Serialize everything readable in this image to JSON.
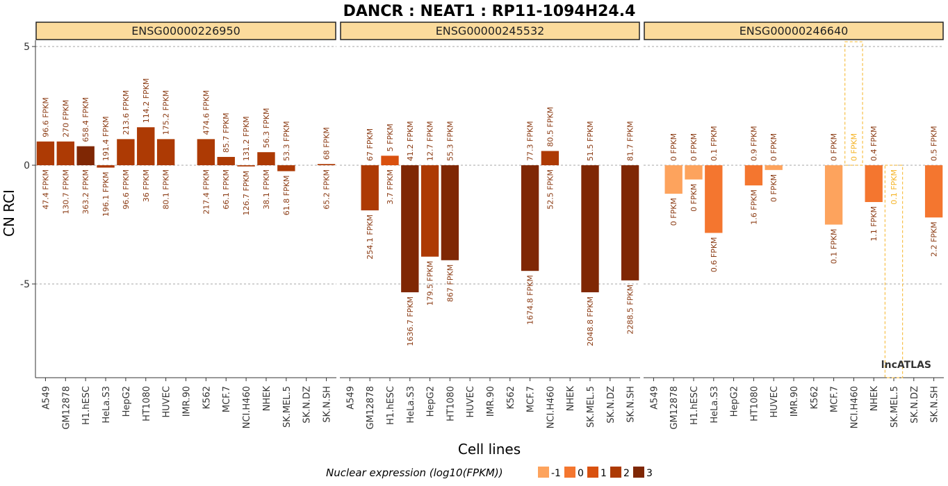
{
  "chart_data": {
    "type": "bar",
    "title": "DANCR : NEAT1 : RP11-1094H24.4",
    "xlabel": "Cell lines",
    "ylabel": "CN RCI",
    "ylim": [
      -9,
      5.2
    ],
    "yticks": [
      5,
      0,
      -5
    ],
    "grid_lines": [
      5,
      0,
      -5
    ],
    "categories": [
      "A549",
      "GM12878",
      "H1.hESC",
      "HeLa.S3",
      "HepG2",
      "HT1080",
      "HUVEC",
      "IMR.90",
      "K562",
      "MCF.7",
      "NCI.H460",
      "NHEK",
      "SK.MEL.5",
      "SK.N.DZ",
      "SK.N.SH"
    ],
    "brand": "lncATLAS",
    "legend": {
      "title": "Nuclear expression (log10(FPKM))",
      "entries": [
        {
          "label": "-1",
          "color": "#fda35d"
        },
        {
          "label": "0",
          "color": "#f4762f"
        },
        {
          "label": "1",
          "color": "#d9510f"
        },
        {
          "label": "2",
          "color": "#ad3a04"
        },
        {
          "label": "3",
          "color": "#7f2704"
        }
      ],
      "position": "bottom"
    },
    "panels": [
      {
        "name": "ENSG00000226950",
        "values": [
          1.0,
          1.0,
          0.8,
          -0.1,
          1.1,
          1.6,
          1.1,
          null,
          1.1,
          0.35,
          -0.05,
          0.55,
          -0.25,
          null,
          0.05
        ],
        "nuclear_log10": [
          1.68,
          2.12,
          2.56,
          2.29,
          1.99,
          1.56,
          1.9,
          null,
          2.34,
          1.82,
          2.1,
          1.58,
          1.79,
          null,
          1.81
        ],
        "cyto_labels": [
          "96.6 FPKM",
          "270 FPKM",
          "658.4 FPKM",
          "191.4 FPKM",
          "213.6 FPKM",
          "114.2 FPKM",
          "175.2 FPKM",
          "",
          "474.6 FPKM",
          "85.7 FPKM",
          "131.2 FPKM",
          "56.3 FPKM",
          "53.3 FPKM",
          "",
          "68 FPKM"
        ],
        "nuc_labels": [
          "47.4 FPKM",
          "130.7 FPKM",
          "363.2 FPKM",
          "196.1 FPKM",
          "96.6 FPKM",
          "36 FPKM",
          "80.1 FPKM",
          "",
          "217.4 FPKM",
          "66.1 FPKM",
          "126.7 FPKM",
          "38.1 FPKM",
          "61.8 FPKM",
          "",
          "65.2 FPKM"
        ]
      },
      {
        "name": "ENSG00000245532",
        "values": [
          null,
          -1.9,
          0.4,
          -5.35,
          -3.85,
          -4.0,
          null,
          null,
          null,
          -4.45,
          0.6,
          null,
          -5.35,
          null,
          -4.85
        ],
        "nuclear_log10": [
          null,
          2.41,
          0.57,
          3.21,
          2.25,
          2.94,
          null,
          null,
          null,
          3.22,
          1.72,
          null,
          3.31,
          null,
          3.36
        ],
        "cyto_labels": [
          "",
          "67 FPKM",
          "5 FPKM",
          "41.2 FPKM",
          "12.7 FPKM",
          "55.3 FPKM",
          "",
          "",
          "",
          "77.3 FPKM",
          "80.5 FPKM",
          "",
          "51.5 FPKM",
          "",
          "81.7 FPKM"
        ],
        "nuc_labels": [
          "",
          "254.1 FPKM",
          "3.7 FPKM",
          "1636.7 FPKM",
          "179.5 FPKM",
          "867 FPKM",
          "",
          "",
          "",
          "1674.8 FPKM",
          "52.5 FPKM",
          "",
          "2048.8 FPKM",
          "",
          "2288.5 FPKM"
        ]
      },
      {
        "name": "ENSG00000246640",
        "values": [
          null,
          -1.2,
          -0.6,
          -2.85,
          null,
          -0.85,
          -0.2,
          null,
          null,
          -2.5,
          "missing",
          -1.55,
          "missing-neg",
          null,
          -2.2
        ],
        "nuclear_log10": [
          null,
          -1,
          -1,
          -0.22,
          null,
          0.2,
          -1,
          null,
          null,
          -1,
          null,
          0.04,
          null,
          null,
          0.34
        ],
        "cyto_labels": [
          "",
          "0 FPKM",
          "0 FPKM",
          "0.1 FPKM",
          "",
          "0.9 FPKM",
          "0 FPKM",
          "",
          "",
          "0 FPKM",
          "0 FPKM",
          "0.4 FPKM",
          "",
          "",
          "0.5 FPKM"
        ],
        "nuc_labels": [
          "",
          "0 FPKM",
          "0 FPKM",
          "0.6 FPKM",
          "",
          "1.6 FPKM",
          "0 FPKM",
          "",
          "",
          "0.1 FPKM",
          "",
          "1.1 FPKM",
          "0.1 FPKM",
          "",
          "2.2 FPKM"
        ]
      }
    ]
  }
}
